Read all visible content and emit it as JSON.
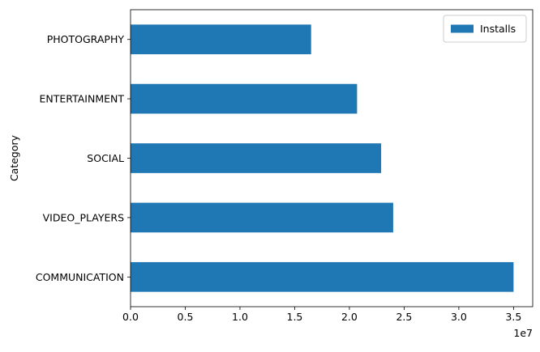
{
  "chart_data": {
    "type": "bar",
    "orientation": "horizontal",
    "categories": [
      "COMMUNICATION",
      "VIDEO_PLAYERS",
      "SOCIAL",
      "ENTERTAINMENT",
      "PHOTOGRAPHY"
    ],
    "series": [
      {
        "name": "Installs",
        "values": [
          35000000,
          24000000,
          22900000,
          20700000,
          16500000
        ],
        "color": "#1f77b4"
      }
    ],
    "xlabel": "",
    "ylabel": "Category",
    "xlim": [
      0,
      36750000
    ],
    "x_ticks": [
      0,
      5000000,
      10000000,
      15000000,
      20000000,
      25000000,
      30000000,
      35000000
    ],
    "x_tick_labels": [
      "0.0",
      "0.5",
      "1.0",
      "1.5",
      "2.0",
      "2.5",
      "3.0",
      "3.5"
    ],
    "x_offset_label": "1e7",
    "grid": false,
    "legend": {
      "position": "top-right",
      "entries": [
        "Installs"
      ]
    }
  }
}
